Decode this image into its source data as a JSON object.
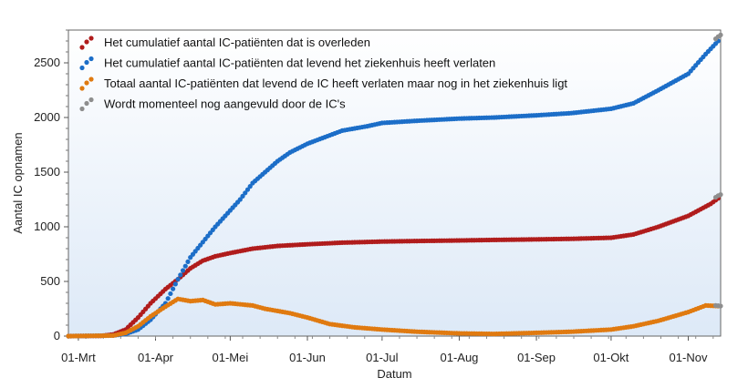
{
  "chart_data": {
    "type": "scatter",
    "title": "",
    "xlabel": "Datum",
    "ylabel": "Aantal IC opnamen",
    "ylim": [
      0,
      2800
    ],
    "yticks": [
      0,
      500,
      1000,
      1500,
      2000,
      2500
    ],
    "xlim": [
      "2020-02-26",
      "2020-11-14"
    ],
    "xticks": [
      {
        "date": "2020-03-01",
        "label": "01-Mrt"
      },
      {
        "date": "2020-04-01",
        "label": "01-Apr"
      },
      {
        "date": "2020-05-01",
        "label": "01-Mei"
      },
      {
        "date": "2020-06-01",
        "label": "01-Jun"
      },
      {
        "date": "2020-07-01",
        "label": "01-Jul"
      },
      {
        "date": "2020-08-01",
        "label": "01-Aug"
      },
      {
        "date": "2020-09-01",
        "label": "01-Sep"
      },
      {
        "date": "2020-10-01",
        "label": "01-Okt"
      },
      {
        "date": "2020-11-01",
        "label": "01-Nov"
      }
    ],
    "grid": false,
    "legend_position": "top-left",
    "series": [
      {
        "name": "Het cumulatief aantal IC-patiënten dat is overleden",
        "color": "#b01c1c",
        "points": [
          [
            "2020-02-26",
            0
          ],
          [
            "2020-03-10",
            2
          ],
          [
            "2020-03-15",
            15
          ],
          [
            "2020-03-20",
            60
          ],
          [
            "2020-03-25",
            170
          ],
          [
            "2020-03-30",
            300
          ],
          [
            "2020-04-05",
            430
          ],
          [
            "2020-04-10",
            520
          ],
          [
            "2020-04-15",
            620
          ],
          [
            "2020-04-20",
            690
          ],
          [
            "2020-04-25",
            730
          ],
          [
            "2020-05-01",
            760
          ],
          [
            "2020-05-10",
            800
          ],
          [
            "2020-05-20",
            825
          ],
          [
            "2020-06-01",
            840
          ],
          [
            "2020-06-15",
            855
          ],
          [
            "2020-07-01",
            865
          ],
          [
            "2020-07-15",
            870
          ],
          [
            "2020-08-01",
            875
          ],
          [
            "2020-08-15",
            880
          ],
          [
            "2020-09-01",
            885
          ],
          [
            "2020-09-15",
            890
          ],
          [
            "2020-10-01",
            900
          ],
          [
            "2020-10-10",
            930
          ],
          [
            "2020-10-20",
            1000
          ],
          [
            "2020-11-01",
            1100
          ],
          [
            "2020-11-10",
            1210
          ],
          [
            "2020-11-13",
            1260
          ]
        ]
      },
      {
        "name": "Het cumulatief aantal IC-patiënten dat levend het ziekenhuis heeft verlaten",
        "color": "#1c6ec8",
        "points": [
          [
            "2020-02-26",
            0
          ],
          [
            "2020-03-15",
            5
          ],
          [
            "2020-03-20",
            20
          ],
          [
            "2020-03-25",
            60
          ],
          [
            "2020-03-30",
            150
          ],
          [
            "2020-04-05",
            300
          ],
          [
            "2020-04-10",
            520
          ],
          [
            "2020-04-15",
            720
          ],
          [
            "2020-04-20",
            860
          ],
          [
            "2020-04-25",
            1000
          ],
          [
            "2020-05-01",
            1150
          ],
          [
            "2020-05-05",
            1250
          ],
          [
            "2020-05-10",
            1400
          ],
          [
            "2020-05-15",
            1500
          ],
          [
            "2020-05-20",
            1600
          ],
          [
            "2020-05-25",
            1680
          ],
          [
            "2020-06-01",
            1760
          ],
          [
            "2020-06-08",
            1820
          ],
          [
            "2020-06-15",
            1880
          ],
          [
            "2020-06-25",
            1920
          ],
          [
            "2020-07-01",
            1950
          ],
          [
            "2020-07-15",
            1970
          ],
          [
            "2020-08-01",
            1990
          ],
          [
            "2020-08-15",
            2000
          ],
          [
            "2020-09-01",
            2020
          ],
          [
            "2020-09-15",
            2040
          ],
          [
            "2020-10-01",
            2080
          ],
          [
            "2020-10-10",
            2130
          ],
          [
            "2020-10-20",
            2250
          ],
          [
            "2020-11-01",
            2400
          ],
          [
            "2020-11-08",
            2580
          ],
          [
            "2020-11-13",
            2700
          ]
        ]
      },
      {
        "name": "Totaal aantal IC-patiënten dat levend de IC heeft verlaten maar nog in het ziekenhuis ligt",
        "color": "#e07a10",
        "points": [
          [
            "2020-02-26",
            0
          ],
          [
            "2020-03-15",
            5
          ],
          [
            "2020-03-20",
            30
          ],
          [
            "2020-03-25",
            90
          ],
          [
            "2020-03-30",
            180
          ],
          [
            "2020-04-05",
            270
          ],
          [
            "2020-04-10",
            340
          ],
          [
            "2020-04-15",
            320
          ],
          [
            "2020-04-20",
            330
          ],
          [
            "2020-04-25",
            290
          ],
          [
            "2020-05-01",
            300
          ],
          [
            "2020-05-10",
            280
          ],
          [
            "2020-05-15",
            250
          ],
          [
            "2020-05-25",
            210
          ],
          [
            "2020-06-01",
            170
          ],
          [
            "2020-06-10",
            110
          ],
          [
            "2020-06-20",
            80
          ],
          [
            "2020-07-01",
            60
          ],
          [
            "2020-07-15",
            40
          ],
          [
            "2020-08-01",
            25
          ],
          [
            "2020-08-15",
            20
          ],
          [
            "2020-09-01",
            30
          ],
          [
            "2020-09-15",
            40
          ],
          [
            "2020-10-01",
            60
          ],
          [
            "2020-10-10",
            90
          ],
          [
            "2020-10-20",
            140
          ],
          [
            "2020-11-01",
            220
          ],
          [
            "2020-11-08",
            280
          ],
          [
            "2020-11-13",
            275
          ]
        ]
      },
      {
        "name": "Wordt momenteel nog aangevuld door de IC's",
        "color": "#8e8e8e",
        "points": [
          [
            "2020-11-12",
            1270
          ],
          [
            "2020-11-13",
            1285
          ],
          [
            "2020-11-14",
            1295
          ],
          [
            "2020-11-12",
            2720
          ],
          [
            "2020-11-13",
            2740
          ],
          [
            "2020-11-14",
            2755
          ],
          [
            "2020-11-12",
            280
          ],
          [
            "2020-11-13",
            278
          ],
          [
            "2020-11-14",
            275
          ]
        ]
      }
    ]
  }
}
